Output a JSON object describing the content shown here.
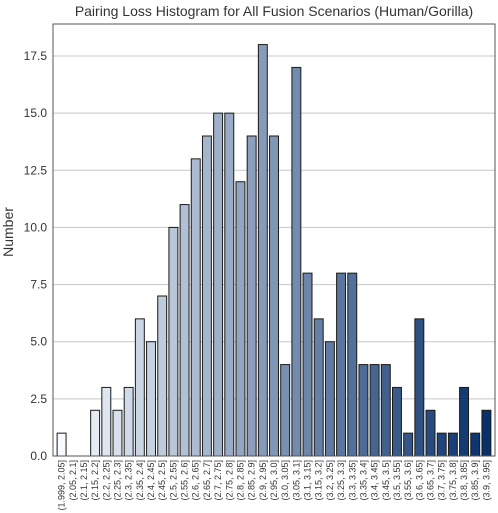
{
  "chart_data": {
    "type": "bar",
    "title": "Pairing Loss Histogram for All Fusion Scenarios (Human/Gorilla)",
    "xlabel": "",
    "ylabel": "Number",
    "ylim": [
      0,
      18.9
    ],
    "yticks": [
      "0.0",
      "2.5",
      "5.0",
      "7.5",
      "10.0",
      "12.5",
      "15.0",
      "17.5"
    ],
    "grid": "horizontal",
    "color_scale": {
      "from": "#f7fbff",
      "to": "#08306b"
    },
    "categories": [
      "(1.999, 2.05]",
      "(2.05, 2.1]",
      "(2.1, 2.15]",
      "(2.15, 2.2]",
      "(2.2, 2.25]",
      "(2.25, 2.3]",
      "(2.3, 2.35]",
      "(2.35, 2.4]",
      "(2.4, 2.45]",
      "(2.45, 2.5]",
      "(2.5, 2.55]",
      "(2.55, 2.6]",
      "(2.6, 2.65]",
      "(2.65, 2.7]",
      "(2.7, 2.75]",
      "(2.75, 2.8]",
      "(2.8, 2.85]",
      "(2.85, 2.9]",
      "(2.9, 2.95]",
      "(2.95, 3.0]",
      "(3.0, 3.05]",
      "(3.05, 3.1]",
      "(3.1, 3.15]",
      "(3.15, 3.2]",
      "(3.2, 3.25]",
      "(3.25, 3.3]",
      "(3.3, 3.35]",
      "(3.35, 3.4]",
      "(3.4, 3.45]",
      "(3.45, 3.5]",
      "(3.5, 3.55]",
      "(3.55, 3.6]",
      "(3.6, 3.65]",
      "(3.65, 3.7]",
      "(3.7, 3.75]",
      "(3.75, 3.8]",
      "(3.8, 3.85]",
      "(3.85, 3.9]",
      "(3.9, 3.95]"
    ],
    "values": [
      1,
      0,
      0,
      2,
      3,
      2,
      3,
      6,
      5,
      7,
      10,
      11,
      13,
      14,
      15,
      15,
      12,
      14,
      18,
      14,
      4,
      17,
      8,
      6,
      5,
      8,
      8,
      4,
      4,
      4,
      3,
      1,
      6,
      2,
      1,
      1,
      3,
      1,
      2
    ]
  }
}
